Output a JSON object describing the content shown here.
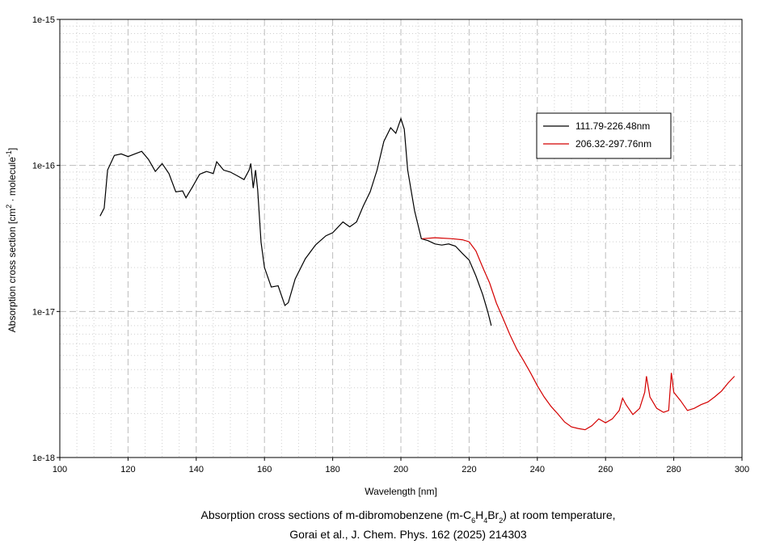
{
  "chart_data": {
    "type": "line",
    "title": [
      "Absorption cross sections of m-dibromobenzene (m-C",
      "6",
      "H",
      "4",
      "Br",
      "2",
      ") at room temperature,"
    ],
    "subtitle": "Gorai et al., J. Chem. Phys. 162 (2025) 214303",
    "x_label": "Wavelength [nm]",
    "y_label": [
      "Absorption cross section [cm",
      "2",
      " · molecule",
      "-1",
      "]"
    ],
    "xlim": [
      100,
      300
    ],
    "xticks": [
      100,
      120,
      140,
      160,
      180,
      200,
      220,
      240,
      260,
      280,
      300
    ],
    "ylim": [
      1e-18,
      1e-15
    ],
    "yticks": [
      1e-18,
      1e-17,
      1e-16,
      1e-15
    ],
    "log_y": true,
    "grid": true,
    "minor_grid": true,
    "legend": "upper right",
    "series": [
      {
        "name": "111.79-226.48nm",
        "color": "#000000",
        "x": [
          111.8,
          113,
          114,
          116,
          118,
          120,
          122,
          124,
          126,
          128,
          130,
          132,
          134,
          136,
          137,
          139,
          141,
          143,
          145,
          146,
          148,
          150,
          152,
          154,
          155.5,
          156,
          156.7,
          157.4,
          158,
          159,
          160,
          162,
          164,
          166,
          167,
          169,
          172,
          175,
          178,
          180,
          183,
          185,
          187,
          189,
          191,
          193,
          195,
          197,
          198.5,
          200,
          201,
          202,
          204,
          206,
          208,
          210,
          212,
          214,
          216,
          218,
          220,
          222,
          224,
          225.5,
          226.5
        ],
        "values": [
          4.5e-17,
          5.1e-17,
          9.3e-17,
          1.17e-16,
          1.2e-16,
          1.15e-16,
          1.2e-16,
          1.25e-16,
          1.1e-16,
          9.1e-17,
          1.03e-16,
          8.8e-17,
          6.6e-17,
          6.7e-17,
          6e-17,
          7.2e-17,
          8.7e-17,
          9.1e-17,
          8.8e-17,
          1.06e-16,
          9.3e-17,
          9e-17,
          8.5e-17,
          8e-17,
          9.3e-17,
          1.03e-16,
          7e-17,
          9.3e-17,
          6.8e-17,
          2.97e-17,
          2e-17,
          1.47e-17,
          1.5e-17,
          1.1e-17,
          1.15e-17,
          1.67e-17,
          2.3e-17,
          2.86e-17,
          3.3e-17,
          3.46e-17,
          4.1e-17,
          3.8e-17,
          4.1e-17,
          5.3e-17,
          6.6e-17,
          9.3e-17,
          1.46e-16,
          1.81e-16,
          1.66e-16,
          2.09e-16,
          1.77e-16,
          9.3e-17,
          4.9e-17,
          3.15e-17,
          3.05e-17,
          2.9e-17,
          2.85e-17,
          2.9e-17,
          2.8e-17,
          2.5e-17,
          2.25e-17,
          1.75e-17,
          1.3e-17,
          9.9e-18,
          8e-18
        ]
      },
      {
        "name": "206.32-297.76nm",
        "color": "#d40000",
        "x": [
          206.3,
          210,
          215,
          218,
          220,
          222,
          224,
          226,
          228,
          230,
          232,
          234,
          236,
          238,
          240,
          242,
          244,
          246,
          248,
          250,
          252,
          254,
          256,
          258,
          260,
          262,
          264,
          265,
          266,
          268,
          270,
          271.5,
          272,
          273,
          275,
          277,
          278.5,
          279.3,
          280,
          282,
          284,
          286,
          288,
          290,
          292,
          294,
          296,
          297.8
        ],
        "values": [
          3.15e-17,
          3.2e-17,
          3.15e-17,
          3.1e-17,
          3e-17,
          2.6e-17,
          2e-17,
          1.57e-17,
          1.14e-17,
          8.9e-18,
          6.9e-18,
          5.5e-18,
          4.6e-18,
          3.8e-18,
          3.1e-18,
          2.6e-18,
          2.24e-18,
          1.99e-18,
          1.75e-18,
          1.62e-18,
          1.58e-18,
          1.55e-18,
          1.65e-18,
          1.84e-18,
          1.73e-18,
          1.84e-18,
          2.1e-18,
          2.55e-18,
          2.3e-18,
          1.97e-18,
          2.17e-18,
          2.8e-18,
          3.6e-18,
          2.6e-18,
          2.17e-18,
          2.04e-18,
          2.1e-18,
          3.8e-18,
          2.8e-18,
          2.45e-18,
          2.1e-18,
          2.17e-18,
          2.3e-18,
          2.4e-18,
          2.6e-18,
          2.85e-18,
          3.25e-18,
          3.6e-18
        ]
      }
    ]
  }
}
